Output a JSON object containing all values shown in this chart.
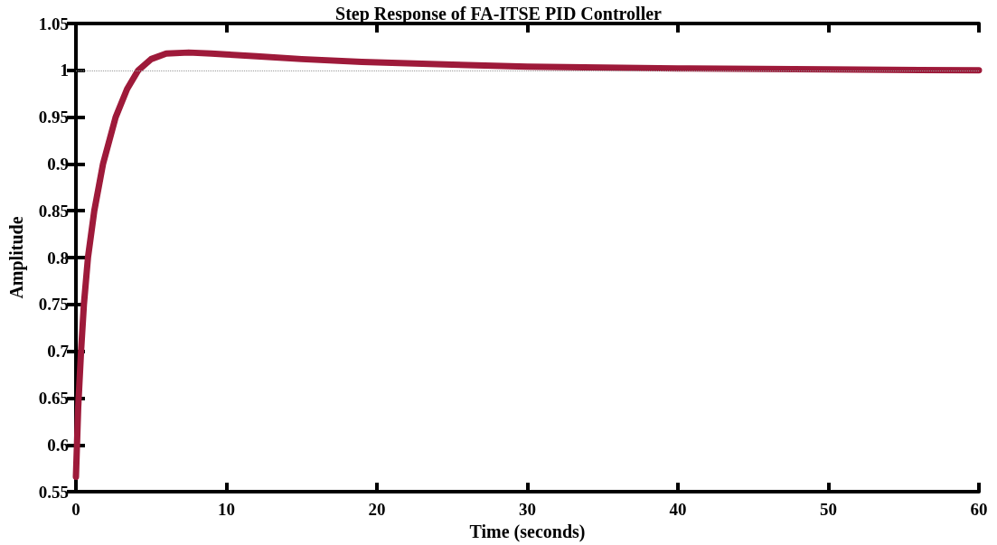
{
  "chart_data": {
    "type": "line",
    "title": "Step Response of FA-ITSE PID Controller",
    "xlabel": "Time (seconds)",
    "ylabel": "Amplitude",
    "x": [
      0,
      0.15,
      0.34,
      0.53,
      0.8,
      1.22,
      1.8,
      2.64,
      3.4,
      4.14,
      5,
      6,
      7.5,
      9,
      10,
      12,
      15,
      19,
      25,
      30,
      40,
      50,
      60
    ],
    "series": [
      {
        "color": "#9e1a3a",
        "values": [
          0.566,
          0.64,
          0.7,
          0.75,
          0.8,
          0.85,
          0.9,
          0.95,
          0.98,
          1.0,
          1.012,
          1.018,
          1.019,
          1.018,
          1.017,
          1.015,
          1.012,
          1.009,
          1.006,
          1.004,
          1.002,
          1.001,
          1.0
        ]
      }
    ],
    "xlim": [
      0,
      60
    ],
    "xticks": [
      0,
      10,
      20,
      30,
      40,
      50,
      60
    ],
    "ylim": [
      0.55,
      1.05
    ],
    "yticks": [
      0.55,
      0.6,
      0.65,
      0.7,
      0.75,
      0.8,
      0.85,
      0.9,
      0.95,
      1,
      1.05
    ],
    "ref_lines": [
      {
        "axis": "y",
        "value": 1,
        "color": "#999999",
        "line_style": "dotted"
      }
    ],
    "grid": false,
    "marker": "none",
    "line_style": "solid"
  }
}
